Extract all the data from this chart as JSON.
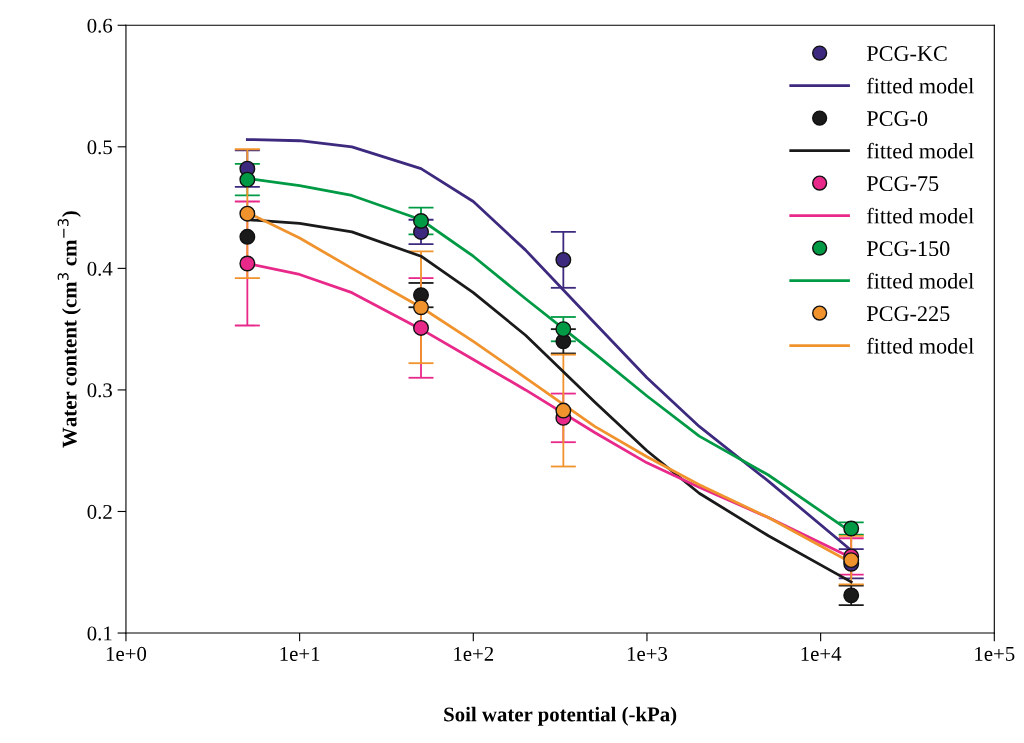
{
  "chart_data": {
    "type": "scatter",
    "xlabel": "Soil water potential (-kPa)",
    "ylabel": "Water content (cm$^{3}$ cm$^{−3}$)",
    "log": "x",
    "xlim": [
      1,
      100000
    ],
    "xticks": [
      {
        "value": 1,
        "label": "1e+0"
      },
      {
        "value": 10,
        "label": "1e+1"
      },
      {
        "value": 100,
        "label": "1e+2"
      },
      {
        "value": 1000,
        "label": "1e+3"
      },
      {
        "value": 10000,
        "label": "1e+4"
      },
      {
        "value": 100000,
        "label": "1e+5"
      }
    ],
    "ylim": [
      0.1,
      0.6
    ],
    "yticks": [
      {
        "value": 0.1,
        "label": "0.1"
      },
      {
        "value": 0.2,
        "label": "0.2"
      },
      {
        "value": 0.3,
        "label": "0.3"
      },
      {
        "value": 0.4,
        "label": "0.4"
      },
      {
        "value": 0.5,
        "label": "0.5"
      },
      {
        "value": 0.6,
        "label": "0.6"
      }
    ],
    "grid": false,
    "legend": "top right",
    "marker": "circle",
    "series": [
      {
        "name": "PCG-KC",
        "color": "#3d2a7f",
        "x": [
          5,
          50,
          330,
          15000
        ],
        "values": [
          0.482,
          0.43,
          0.407,
          0.157
        ],
        "errors": [
          0.015,
          0.01,
          0.023,
          0.012
        ]
      },
      {
        "name": "fitted model",
        "type": "line",
        "marker": "none",
        "color": "#3d2a7f",
        "x": [
          5,
          10,
          20,
          50,
          100,
          200,
          500,
          1000,
          2000,
          5000,
          15000
        ],
        "values": [
          0.506,
          0.505,
          0.5,
          0.482,
          0.455,
          0.415,
          0.355,
          0.31,
          0.27,
          0.225,
          0.168
        ]
      },
      {
        "name": "PCG-0",
        "color": "#1a1a1a",
        "x": [
          5,
          50,
          330,
          15000
        ],
        "values": [
          0.426,
          0.378,
          0.34,
          0.131
        ],
        "errors": [
          null,
          0.01,
          0.01,
          0.008
        ]
      },
      {
        "name": "fitted model",
        "type": "line",
        "marker": "none",
        "color": "#1a1a1a",
        "x": [
          5,
          10,
          20,
          50,
          100,
          200,
          500,
          1000,
          2000,
          5000,
          15000
        ],
        "values": [
          0.44,
          0.437,
          0.43,
          0.41,
          0.38,
          0.345,
          0.29,
          0.25,
          0.215,
          0.18,
          0.142
        ]
      },
      {
        "name": "PCG-75",
        "color": "#e8298a",
        "x": [
          5,
          50,
          330,
          15000
        ],
        "values": [
          0.404,
          0.351,
          0.277,
          0.163
        ],
        "errors": [
          0.051,
          0.041,
          0.02,
          0.015
        ]
      },
      {
        "name": "fitted model",
        "type": "line",
        "marker": "none",
        "color": "#e8298a",
        "x": [
          5,
          10,
          20,
          50,
          100,
          200,
          500,
          1000,
          2000,
          5000,
          15000
        ],
        "values": [
          0.404,
          0.395,
          0.38,
          0.35,
          0.325,
          0.3,
          0.265,
          0.24,
          0.22,
          0.195,
          0.162
        ]
      },
      {
        "name": "PCG-150",
        "color": "#009a45",
        "x": [
          5,
          50,
          330,
          15000
        ],
        "values": [
          0.473,
          0.439,
          0.35,
          0.186
        ],
        "errors": [
          0.013,
          0.011,
          0.01,
          0.005
        ]
      },
      {
        "name": "fitted model",
        "type": "line",
        "marker": "none",
        "color": "#009a45",
        "x": [
          5,
          10,
          20,
          50,
          100,
          200,
          500,
          1000,
          2000,
          5000,
          15000
        ],
        "values": [
          0.474,
          0.468,
          0.46,
          0.44,
          0.41,
          0.375,
          0.33,
          0.295,
          0.262,
          0.23,
          0.183
        ]
      },
      {
        "name": "PCG-225",
        "color": "#f0932d",
        "x": [
          5,
          50,
          330,
          15000
        ],
        "values": [
          0.445,
          0.368,
          0.283,
          0.16
        ],
        "errors": [
          0.053,
          0.046,
          0.046,
          0.02
        ]
      },
      {
        "name": "fitted model",
        "type": "line",
        "marker": "none",
        "color": "#f0932d",
        "x": [
          5,
          10,
          20,
          50,
          100,
          200,
          500,
          1000,
          2000,
          5000,
          15000
        ],
        "values": [
          0.446,
          0.425,
          0.4,
          0.368,
          0.34,
          0.31,
          0.27,
          0.245,
          0.222,
          0.195,
          0.158
        ]
      }
    ]
  }
}
